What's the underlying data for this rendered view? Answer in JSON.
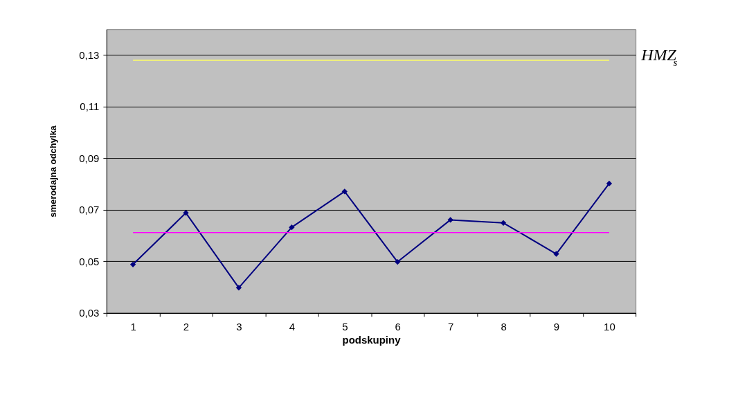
{
  "chart_data": {
    "type": "line",
    "xlabel": "podskupiny",
    "ylabel": "smerodajna odchylka",
    "categories": [
      "1",
      "2",
      "3",
      "4",
      "5",
      "6",
      "7",
      "8",
      "9",
      "10"
    ],
    "series": [
      {
        "color": "#000080",
        "values": [
          0.0488,
          0.0688,
          0.0398,
          0.0632,
          0.0771,
          0.0498,
          0.0661,
          0.0649,
          0.0529,
          0.0802
        ]
      }
    ],
    "marker": "diamond",
    "line_style": "solid",
    "ylim": [
      0.03,
      0.14
    ],
    "yticks": [
      {
        "value": 0.03,
        "label": "0,03"
      },
      {
        "value": 0.05,
        "label": "0,05"
      },
      {
        "value": 0.07,
        "label": "0,07"
      },
      {
        "value": 0.09,
        "label": "0,09"
      },
      {
        "value": 0.11,
        "label": "0,11"
      },
      {
        "value": 0.13,
        "label": "0,13"
      }
    ],
    "grid": "y",
    "ref_lines": [
      {
        "axis": "y",
        "value": 0.128,
        "label": "HMZ$_{s}$",
        "color": "#ffff66"
      },
      {
        "axis": "y",
        "value": 0.0612,
        "color": "#ff00ff"
      }
    ]
  }
}
